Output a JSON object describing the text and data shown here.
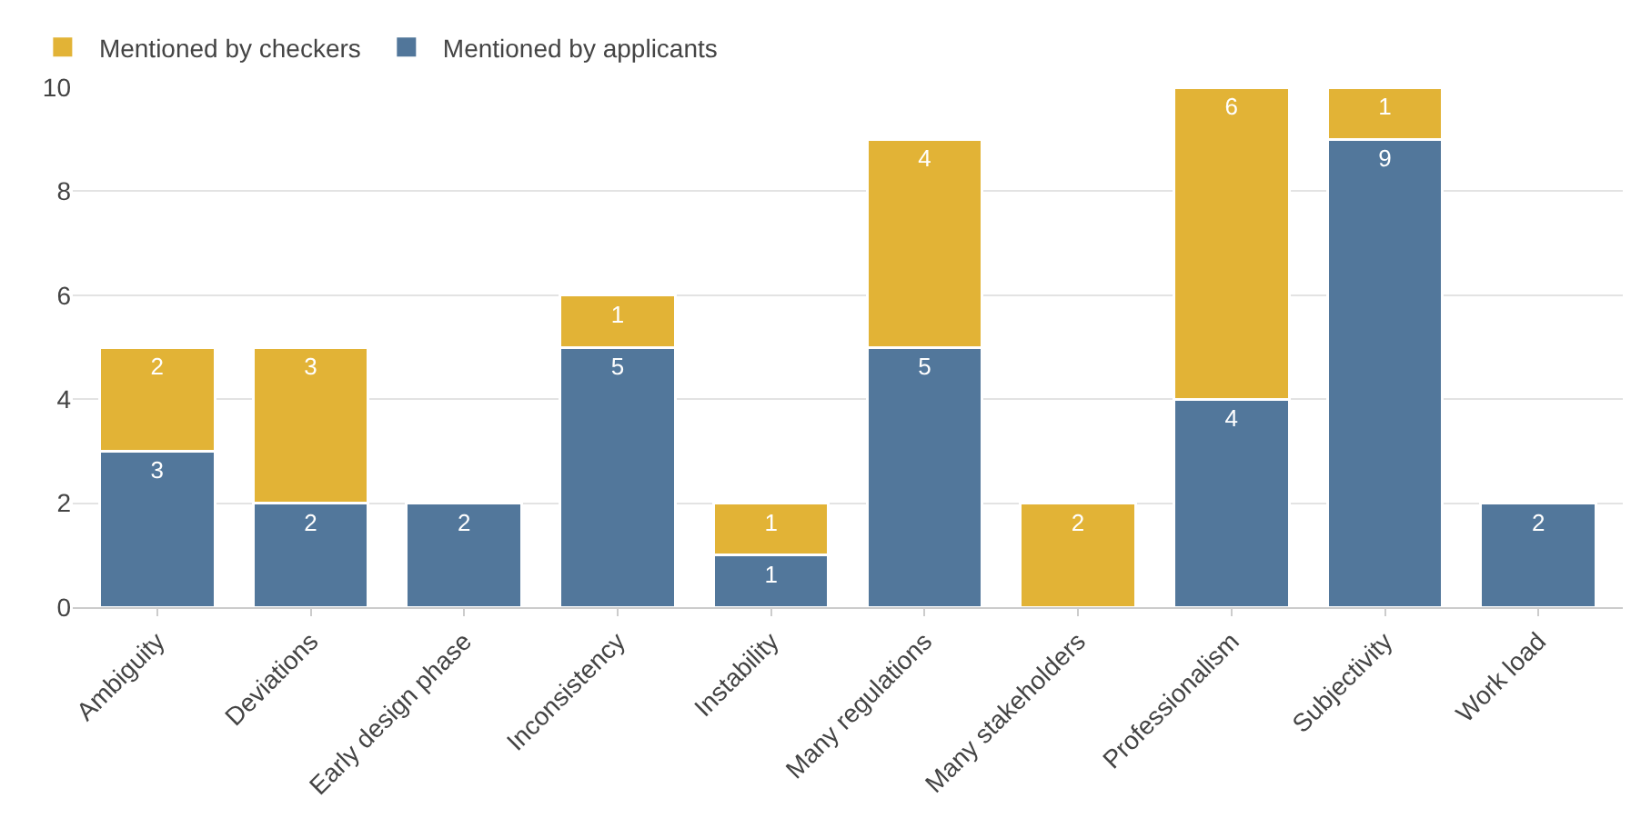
{
  "chart_data": {
    "type": "bar",
    "stacked": true,
    "categories": [
      "Ambiguity",
      "Deviations",
      "Early design phase",
      "Inconsistency",
      "Instability",
      "Many regulations",
      "Many stakeholders",
      "Professionalism",
      "Subjectivity",
      "Work load"
    ],
    "series": [
      {
        "name": "Mentioned by applicants",
        "color": "#4e7499",
        "values": [
          3,
          2,
          2,
          5,
          1,
          5,
          null,
          4,
          9,
          2
        ]
      },
      {
        "name": "Mentioned by checkers",
        "color": "#e2b232",
        "values": [
          2,
          3,
          null,
          1,
          1,
          4,
          2,
          6,
          1,
          null
        ]
      }
    ],
    "ylim": [
      0,
      10
    ],
    "yticks": [
      0,
      2,
      4,
      6,
      8,
      10
    ],
    "grid": "y",
    "legend": "top left",
    "data_labels": true
  }
}
